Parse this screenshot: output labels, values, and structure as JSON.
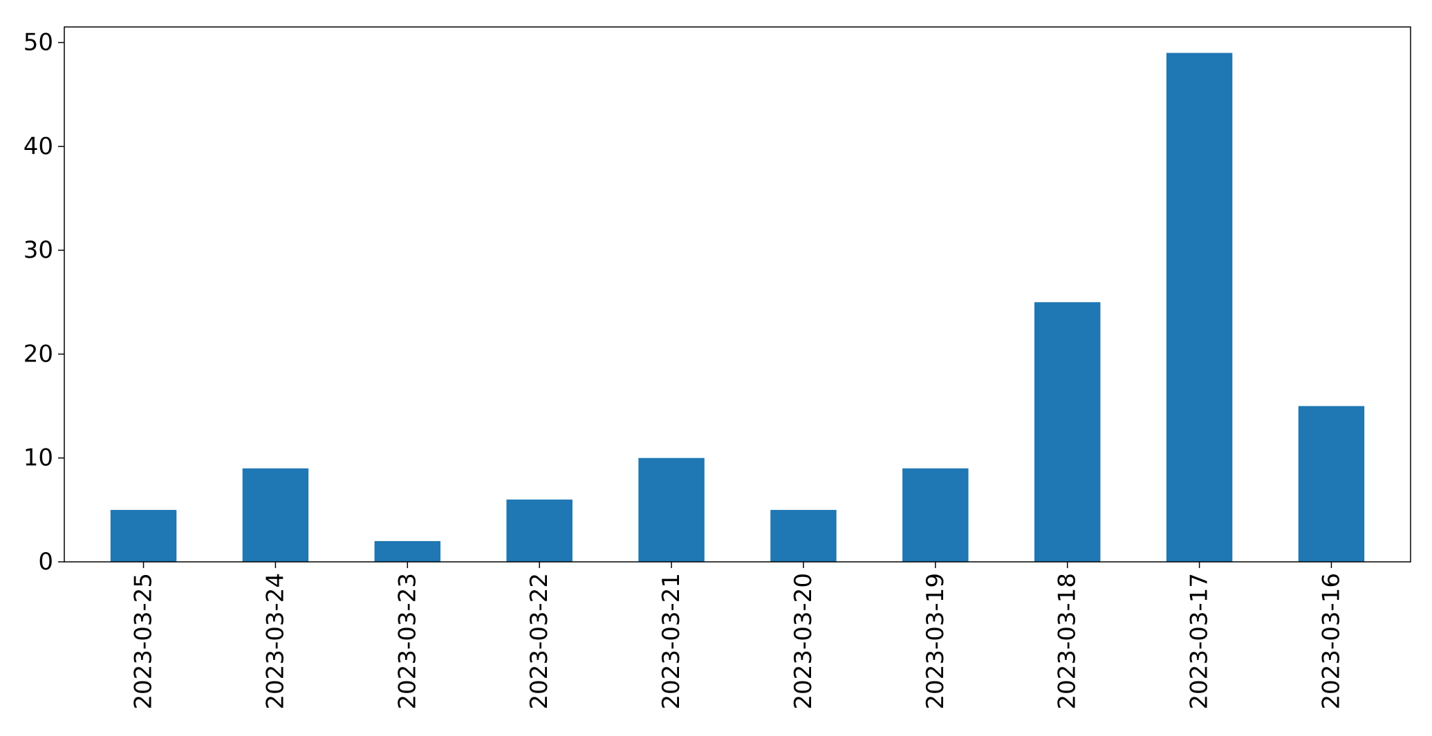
{
  "chart_data": {
    "type": "bar",
    "title": "",
    "xlabel": "",
    "ylabel": "",
    "categories": [
      "2023-03-25",
      "2023-03-24",
      "2023-03-23",
      "2023-03-22",
      "2023-03-21",
      "2023-03-20",
      "2023-03-19",
      "2023-03-18",
      "2023-03-17",
      "2023-03-16"
    ],
    "values": [
      5,
      9,
      2,
      6,
      10,
      5,
      9,
      25,
      49,
      15
    ],
    "ylim": [
      0,
      51.5
    ],
    "yticks": [
      0,
      10,
      20,
      30,
      40,
      50
    ],
    "colors": {
      "bar": "#1f77b4",
      "axis": "#000000",
      "background": "#ffffff"
    },
    "grid": false,
    "legend": "none"
  }
}
